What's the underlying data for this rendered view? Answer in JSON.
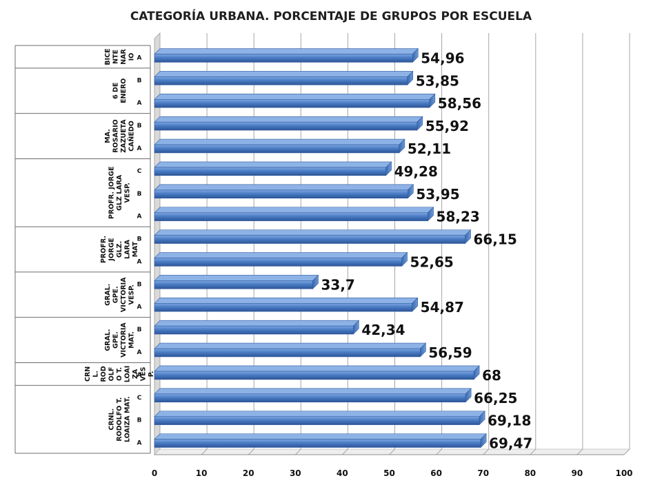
{
  "chart_data": {
    "type": "bar",
    "orientation": "horizontal",
    "title": "CATEGORÍA URBANA. PORCENTAJE DE GRUPOS  POR ESCUELA",
    "xlim": [
      0,
      100
    ],
    "x_ticks": [
      "0",
      "10",
      "20",
      "30",
      "40",
      "50",
      "60",
      "70",
      "80",
      "90",
      "100"
    ],
    "grid": true,
    "bar_color": "#4a7cc4",
    "groups": [
      {
        "label_lines": [
          "BICE",
          "NTE",
          "NAR",
          "IO"
        ],
        "categories": [
          "A"
        ],
        "values": [
          54.96
        ],
        "value_labels": [
          "54,96"
        ]
      },
      {
        "label_lines": [
          "6 DE",
          "ENERO"
        ],
        "categories": [
          "B",
          "A"
        ],
        "values": [
          53.85,
          58.56
        ],
        "value_labels": [
          "53,85",
          "58,56"
        ]
      },
      {
        "label_lines": [
          "MA.",
          "ROSARIO",
          "ZAZUETA",
          "CAÑEDO"
        ],
        "categories": [
          "B",
          "A"
        ],
        "values": [
          55.92,
          52.11
        ],
        "value_labels": [
          "55,92",
          "52,11"
        ]
      },
      {
        "label_lines": [
          "PROFR. JORGE",
          "GLZ LARA",
          "VESP."
        ],
        "categories": [
          "C",
          "B",
          "A"
        ],
        "values": [
          49.28,
          53.95,
          58.23
        ],
        "value_labels": [
          "49,28",
          "53,95",
          "58,23"
        ]
      },
      {
        "label_lines": [
          "PROFR.",
          "JORGE",
          "GLZ.",
          "LARA",
          "MAT"
        ],
        "categories": [
          "B",
          "A"
        ],
        "values": [
          66.15,
          52.65
        ],
        "value_labels": [
          "66,15",
          "52,65"
        ]
      },
      {
        "label_lines": [
          "GRAL.",
          "GPE.",
          "VICTORIA",
          "VESP."
        ],
        "categories": [
          "B",
          "A"
        ],
        "values": [
          33.7,
          54.87
        ],
        "value_labels": [
          "33,7",
          "54,87"
        ]
      },
      {
        "label_lines": [
          "GRAL.",
          "GPE.",
          "VICTORIA",
          "MAT."
        ],
        "categories": [
          "B",
          "A"
        ],
        "values": [
          42.34,
          56.59
        ],
        "value_labels": [
          "42,34",
          "56,59"
        ]
      },
      {
        "label_lines": [
          "CRN",
          "L.",
          "ROD",
          "OLF",
          "O T.",
          "LOAI",
          "ZA",
          "VES",
          "P."
        ],
        "categories": [
          "A"
        ],
        "values": [
          68
        ],
        "value_labels": [
          "68"
        ]
      },
      {
        "label_lines": [
          "CRNL.",
          "RODOLFO T.",
          "LOAIZA MAT."
        ],
        "categories": [
          "C",
          "B",
          "A"
        ],
        "values": [
          66.25,
          69.18,
          69.47
        ],
        "value_labels": [
          "66,25",
          "69,18",
          "69,47"
        ]
      }
    ]
  }
}
